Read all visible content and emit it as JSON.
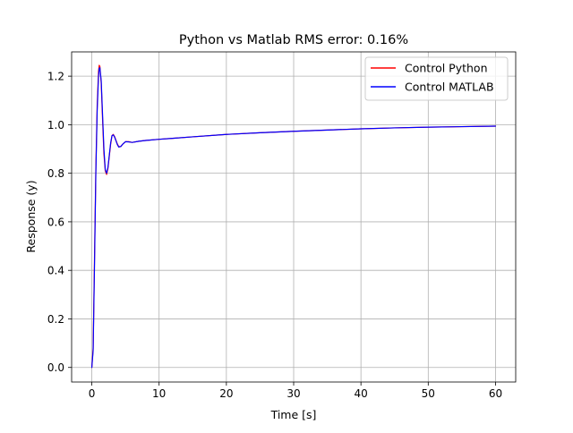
{
  "chart_data": {
    "type": "line",
    "title": "Python vs Matlab RMS error: 0.16%",
    "xlabel": "Time [s]",
    "ylabel": "Response (y)",
    "xlim": [
      -3,
      63
    ],
    "ylim": [
      -0.06,
      1.3
    ],
    "xticks": [
      0,
      10,
      20,
      30,
      40,
      50,
      60
    ],
    "yticks": [
      0.0,
      0.2,
      0.4,
      0.6,
      0.8,
      1.0,
      1.2
    ],
    "grid": true,
    "legend_position": "top-right",
    "series": [
      {
        "name": "Control Python",
        "color": "#ff0000",
        "points": [
          [
            0,
            0.0
          ],
          [
            0.2,
            0.08
          ],
          [
            0.4,
            0.45
          ],
          [
            0.6,
            0.82
          ],
          [
            0.8,
            1.08
          ],
          [
            1.0,
            1.22
          ],
          [
            1.1,
            1.245
          ],
          [
            1.2,
            1.24
          ],
          [
            1.4,
            1.17
          ],
          [
            1.6,
            1.02
          ],
          [
            1.8,
            0.88
          ],
          [
            2.0,
            0.81
          ],
          [
            2.2,
            0.795
          ],
          [
            2.4,
            0.82
          ],
          [
            2.6,
            0.87
          ],
          [
            2.8,
            0.92
          ],
          [
            3.0,
            0.955
          ],
          [
            3.2,
            0.96
          ],
          [
            3.4,
            0.95
          ],
          [
            3.6,
            0.935
          ],
          [
            3.8,
            0.92
          ],
          [
            4.0,
            0.91
          ],
          [
            4.3,
            0.91
          ],
          [
            4.6,
            0.92
          ],
          [
            5.0,
            0.93
          ],
          [
            5.5,
            0.93
          ],
          [
            6.0,
            0.927
          ],
          [
            7.0,
            0.932
          ],
          [
            8.0,
            0.935
          ],
          [
            10,
            0.94
          ],
          [
            12,
            0.944
          ],
          [
            15,
            0.95
          ],
          [
            20,
            0.96
          ],
          [
            25,
            0.967
          ],
          [
            30,
            0.973
          ],
          [
            35,
            0.978
          ],
          [
            40,
            0.983
          ],
          [
            45,
            0.987
          ],
          [
            50,
            0.99
          ],
          [
            55,
            0.992
          ],
          [
            60,
            0.994
          ]
        ]
      },
      {
        "name": "Control MATLAB",
        "color": "#0000ff",
        "points": [
          [
            0,
            0.0
          ],
          [
            0.2,
            0.07
          ],
          [
            0.4,
            0.42
          ],
          [
            0.6,
            0.8
          ],
          [
            0.8,
            1.06
          ],
          [
            1.0,
            1.2
          ],
          [
            1.1,
            1.232
          ],
          [
            1.2,
            1.235
          ],
          [
            1.4,
            1.18
          ],
          [
            1.6,
            1.04
          ],
          [
            1.8,
            0.9
          ],
          [
            2.0,
            0.815
          ],
          [
            2.2,
            0.8
          ],
          [
            2.4,
            0.825
          ],
          [
            2.6,
            0.875
          ],
          [
            2.8,
            0.925
          ],
          [
            3.0,
            0.955
          ],
          [
            3.2,
            0.958
          ],
          [
            3.4,
            0.948
          ],
          [
            3.6,
            0.933
          ],
          [
            3.8,
            0.918
          ],
          [
            4.0,
            0.908
          ],
          [
            4.3,
            0.91
          ],
          [
            4.6,
            0.92
          ],
          [
            5.0,
            0.93
          ],
          [
            5.5,
            0.929
          ],
          [
            6.0,
            0.927
          ],
          [
            7.0,
            0.932
          ],
          [
            8.0,
            0.935
          ],
          [
            10,
            0.94
          ],
          [
            12,
            0.944
          ],
          [
            15,
            0.95
          ],
          [
            20,
            0.96
          ],
          [
            25,
            0.967
          ],
          [
            30,
            0.973
          ],
          [
            35,
            0.978
          ],
          [
            40,
            0.983
          ],
          [
            45,
            0.987
          ],
          [
            50,
            0.99
          ],
          [
            55,
            0.992
          ],
          [
            60,
            0.994
          ]
        ]
      }
    ]
  }
}
